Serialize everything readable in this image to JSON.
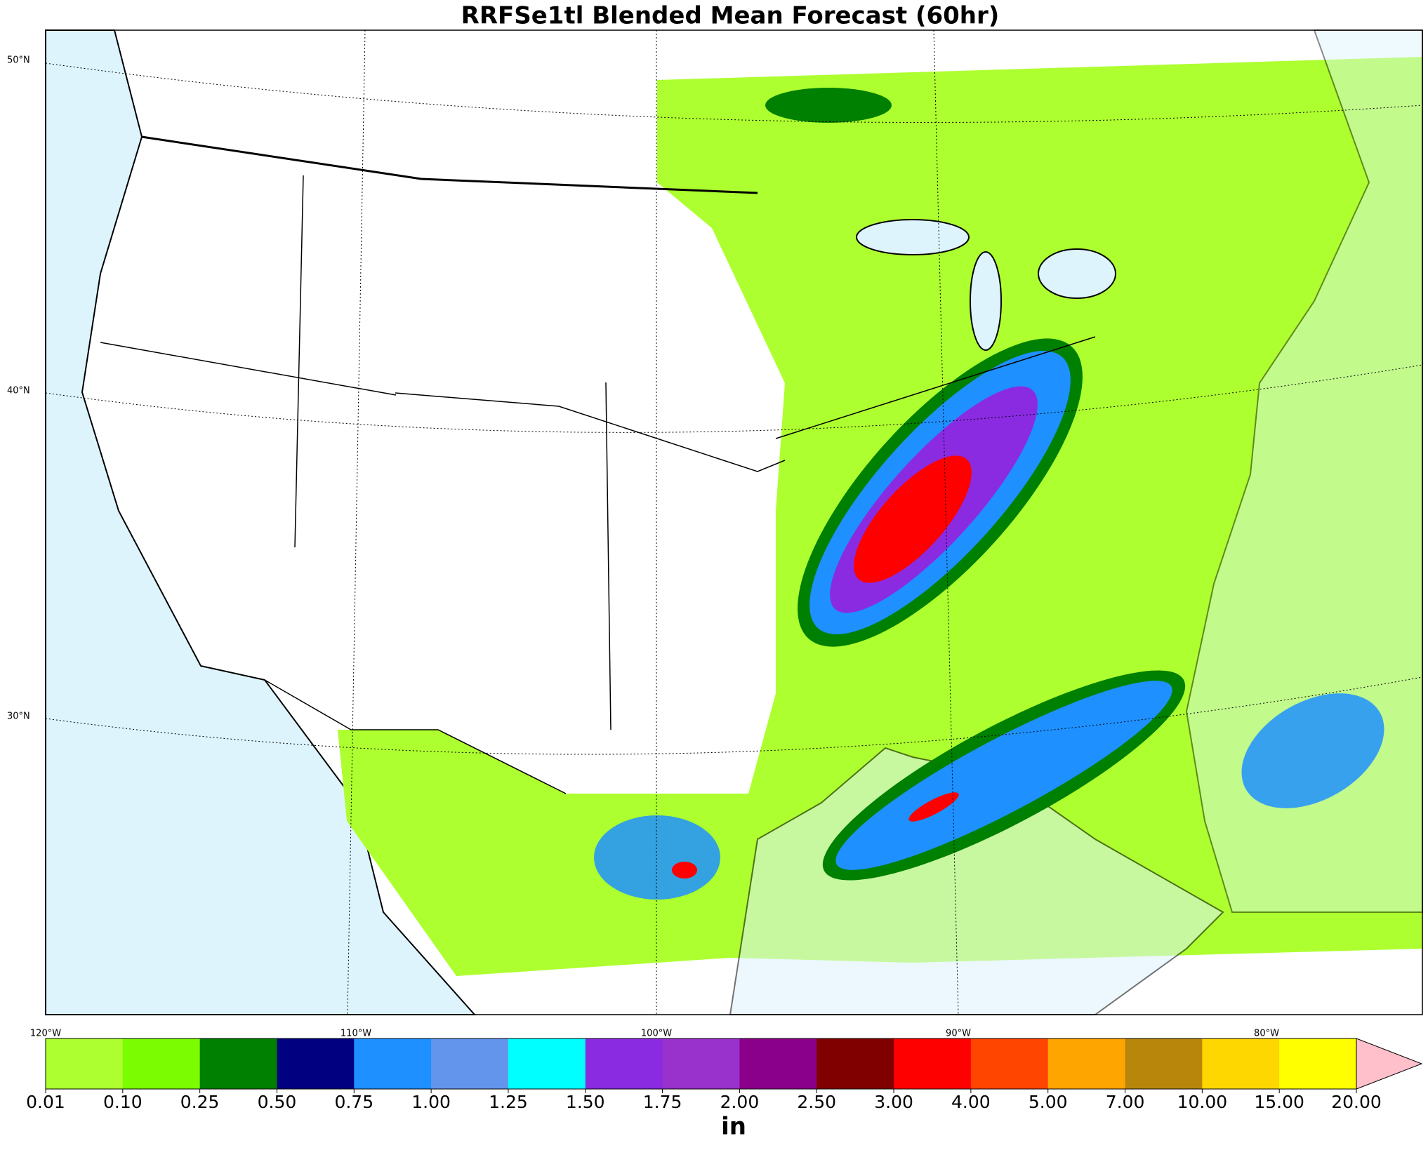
{
  "title": "RRFSe1tl Blended Mean Forecast (60hr)",
  "map": {
    "lat_labels": [
      "50°N",
      "40°N",
      "30°N"
    ],
    "lon_labels": [
      "120°W",
      "110°W",
      "100°W",
      "90°W",
      "80°W"
    ]
  },
  "colorbar": {
    "levels": [
      0.01,
      {
        "value": 0.1,
        "label": "0.10"
      },
      0.25,
      {
        "value": 0.5,
        "label": "0.50"
      },
      0.75,
      {
        "value": 1,
        "label": "1.00"
      },
      1.25,
      {
        "value": 1.5,
        "label": "1.50"
      },
      1.75,
      {
        "value": 2,
        "label": "2.00"
      },
      {
        "value": 2.5,
        "label": "2.50"
      },
      {
        "value": 3,
        "label": "3.00"
      },
      {
        "value": 4,
        "label": "4.00"
      },
      {
        "value": 5,
        "label": "5.00"
      },
      {
        "value": 7,
        "label": "7.00"
      },
      {
        "value": 10,
        "label": "10.00"
      },
      {
        "value": 15,
        "label": "15.00"
      },
      {
        "value": 20,
        "label": "20.00"
      }
    ],
    "colors": [
      "#adff2f",
      "#7cfc00",
      "#008000",
      "#000080",
      "#1e90ff",
      "#6495ed",
      "#00ffff",
      "#8a2be2",
      "#9932cc",
      "#8b008b",
      "#800000",
      "#ff0000",
      "#ff4500",
      "#ffa500",
      "#b8860b",
      "#ffd700",
      "#ffff00"
    ],
    "extend_color": "#ffc0cb",
    "unit": "in"
  }
}
